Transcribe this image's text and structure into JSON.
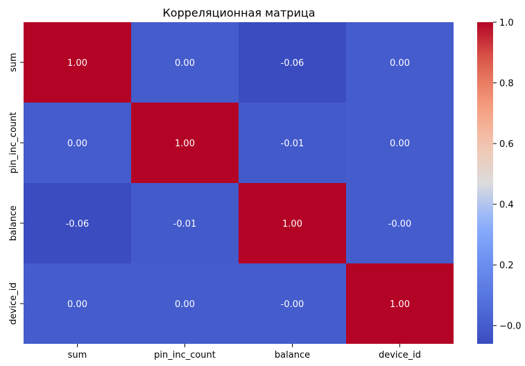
{
  "chart_data": {
    "type": "heatmap",
    "title": "Корреляционная матрица",
    "xlabel": "",
    "ylabel": "",
    "x_categories": [
      "sum",
      "pin_inc_count",
      "balance",
      "device_id"
    ],
    "y_categories": [
      "sum",
      "pin_inc_count",
      "balance",
      "device_id"
    ],
    "values": [
      [
        1.0,
        0.0,
        -0.06,
        0.0
      ],
      [
        0.0,
        1.0,
        -0.01,
        0.0
      ],
      [
        -0.06,
        -0.01,
        1.0,
        -0.0
      ],
      [
        0.0,
        0.0,
        -0.0,
        1.0
      ]
    ],
    "annotations": [
      [
        "1.00",
        "0.00",
        "-0.06",
        "0.00"
      ],
      [
        "0.00",
        "1.00",
        "-0.01",
        "0.00"
      ],
      [
        "-0.06",
        "-0.01",
        "1.00",
        "0.00"
      ],
      [
        "0.00",
        "0.00",
        "-0.00",
        "1.00"
      ]
    ],
    "annotations_fixed": [
      [
        "1.00",
        "0.00",
        "-0.06",
        "0.00"
      ],
      [
        "0.00",
        "1.00",
        "-0.01",
        "0.00"
      ],
      [
        "-0.06",
        "-0.01",
        "1.00",
        "-0.00"
      ],
      [
        "0.00",
        "0.00",
        "-0.00",
        "1.00"
      ]
    ],
    "colormap": "coolwarm",
    "colorbar": {
      "range": [
        -0.06,
        1.0
      ],
      "ticks": [
        -0.0,
        0.2,
        0.4,
        0.6,
        0.8,
        1.0
      ],
      "tick_labels": [
        "−0.0",
        "0.2",
        "0.4",
        "0.6",
        "0.8",
        "1.0"
      ]
    },
    "annotation_text_color": "#ffffff"
  }
}
